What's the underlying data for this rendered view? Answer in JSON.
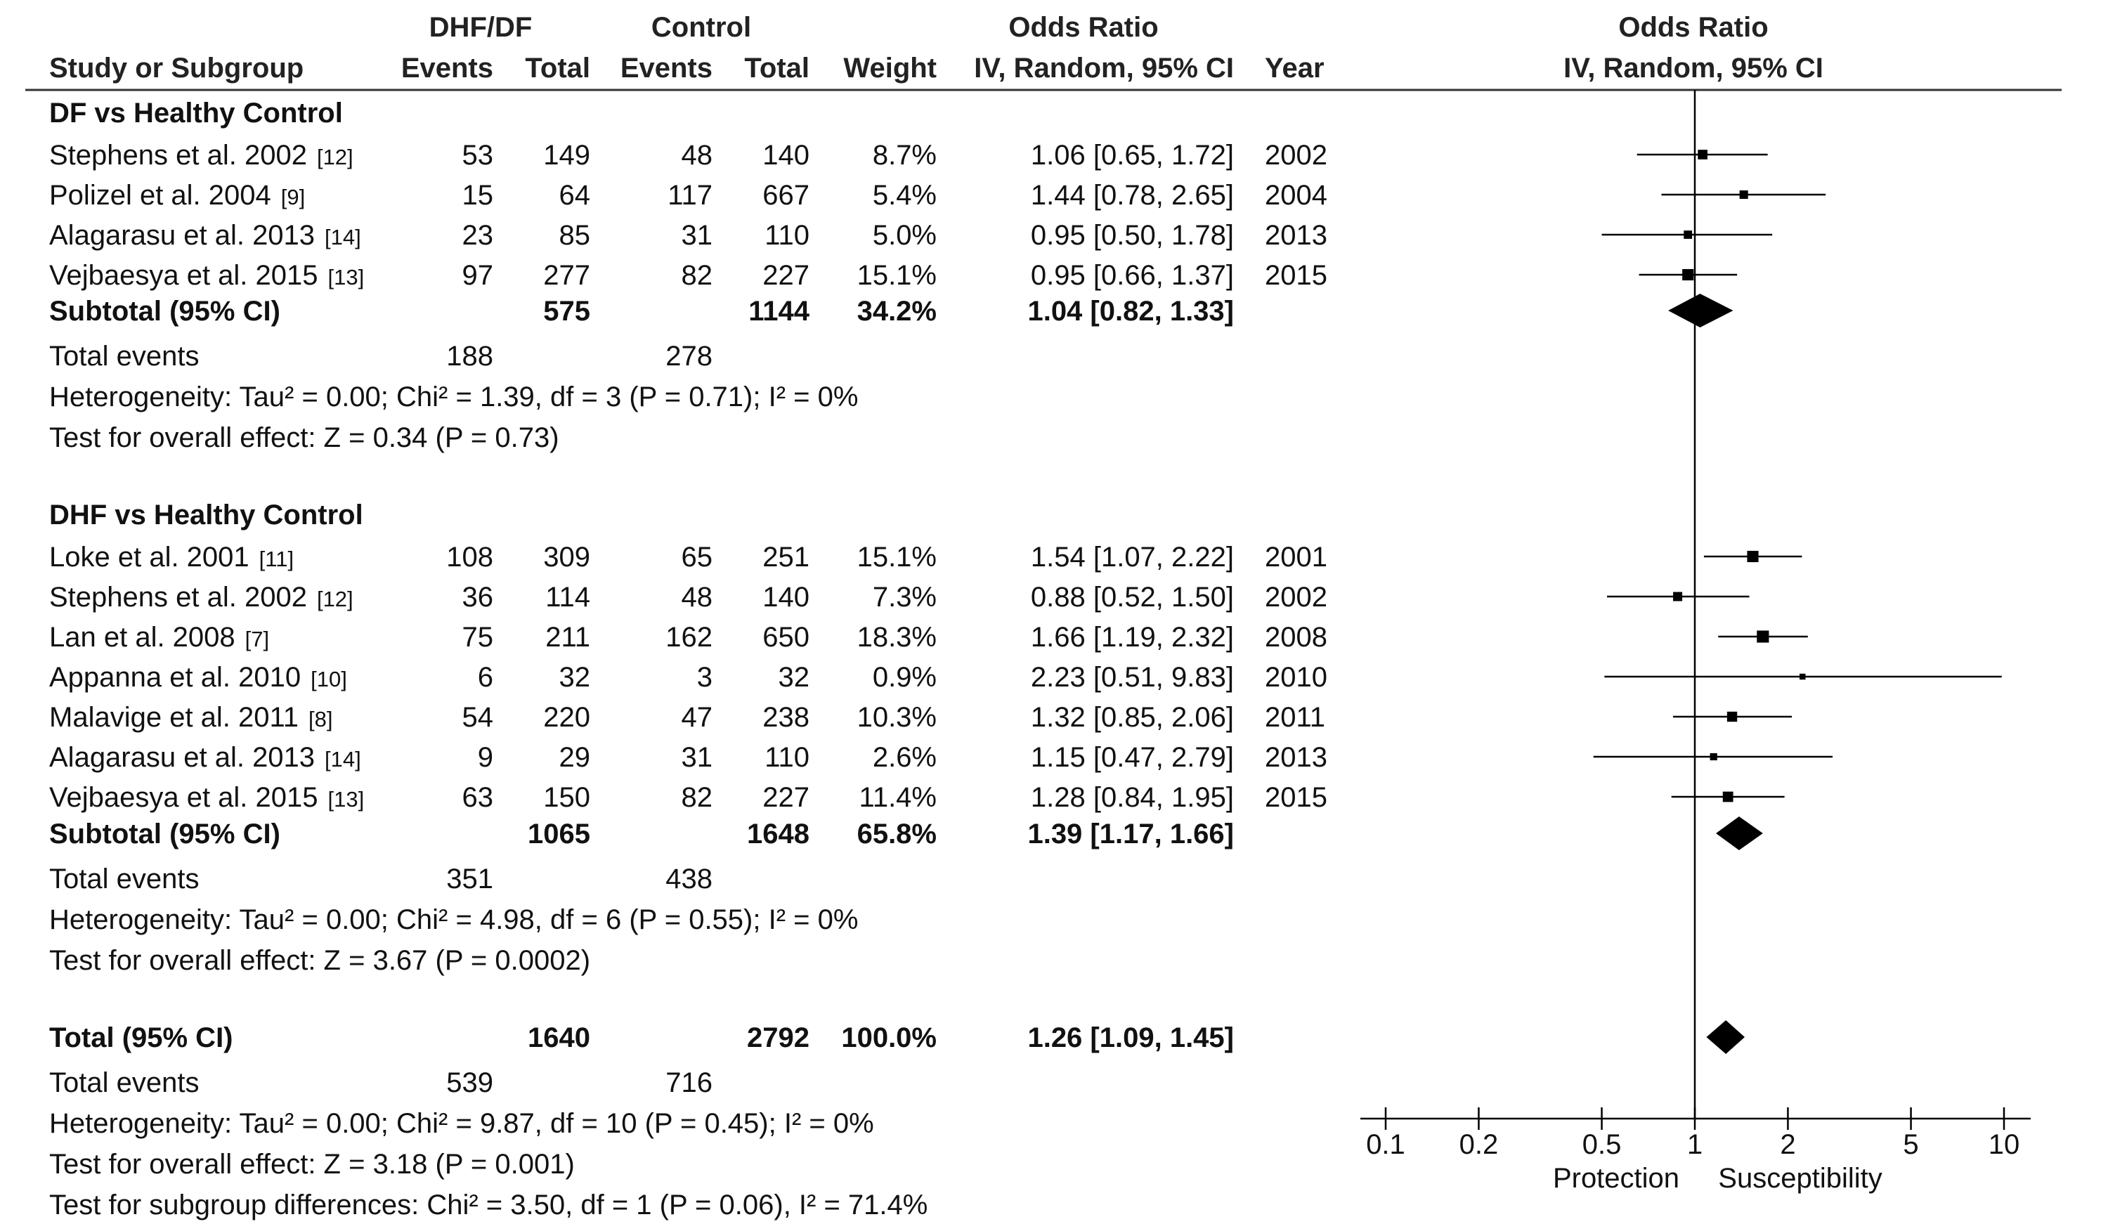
{
  "header": {
    "group1": "DHF/DF",
    "group2": "Control",
    "or_col": "Odds Ratio",
    "study_col": "Study or Subgroup",
    "events": "Events",
    "total": "Total",
    "weight": "Weight",
    "method": "IV, Random, 95% CI",
    "year": "Year",
    "plot_title": "Odds Ratio",
    "plot_method": "IV, Random, 95% CI"
  },
  "chart_data": {
    "type": "forest",
    "scale": "log",
    "xlim": [
      0.1,
      10
    ],
    "null_line": 1,
    "ticks": [
      {
        "value": 0.1,
        "label": "0.1"
      },
      {
        "value": 0.2,
        "label": "0.2"
      },
      {
        "value": 0.5,
        "label": "0.5"
      },
      {
        "value": 1,
        "label": "1"
      },
      {
        "value": 2,
        "label": "2"
      },
      {
        "value": 5,
        "label": "5"
      },
      {
        "value": 10,
        "label": "10"
      }
    ],
    "left_label": "Protection",
    "right_label": "Susceptibility",
    "subgroups": [
      {
        "title": "DF vs Healthy Control",
        "studies": [
          {
            "name": "Stephens et al. 2002",
            "ref": "[12]",
            "e1": "53",
            "t1": "149",
            "e2": "48",
            "t2": "140",
            "weight": "8.7%",
            "ci_text": "1.06 [0.65, 1.72]",
            "year": "2002",
            "or": 1.06,
            "lo": 0.65,
            "hi": 1.72,
            "w": 8.7
          },
          {
            "name": "Polizel et al. 2004",
            "ref": "[9]",
            "e1": "15",
            "t1": "64",
            "e2": "117",
            "t2": "667",
            "weight": "5.4%",
            "ci_text": "1.44 [0.78, 2.65]",
            "year": "2004",
            "or": 1.44,
            "lo": 0.78,
            "hi": 2.65,
            "w": 5.4
          },
          {
            "name": "Alagarasu et al. 2013",
            "ref": "[14]",
            "e1": "23",
            "t1": "85",
            "e2": "31",
            "t2": "110",
            "weight": "5.0%",
            "ci_text": "0.95 [0.50, 1.78]",
            "year": "2013",
            "or": 0.95,
            "lo": 0.5,
            "hi": 1.78,
            "w": 5.0
          },
          {
            "name": "Vejbaesya et al. 2015",
            "ref": "[13]",
            "e1": "97",
            "t1": "277",
            "e2": "82",
            "t2": "227",
            "weight": "15.1%",
            "ci_text": "0.95 [0.66, 1.37]",
            "year": "2015",
            "or": 0.95,
            "lo": 0.66,
            "hi": 1.37,
            "w": 15.1
          }
        ],
        "subtotal": {
          "label": "Subtotal (95% CI)",
          "t1": "575",
          "t2": "1144",
          "weight": "34.2%",
          "ci_text": "1.04 [0.82, 1.33]",
          "or": 1.04,
          "lo": 0.82,
          "hi": 1.33
        },
        "total_events": {
          "label": "Total events",
          "e1": "188",
          "e2": "278"
        },
        "heterogeneity": "Heterogeneity: Tau² = 0.00; Chi² = 1.39, df = 3 (P = 0.71); I² = 0%",
        "overall": "Test for overall effect: Z = 0.34 (P = 0.73)"
      },
      {
        "title": "DHF vs Healthy Control",
        "studies": [
          {
            "name": "Loke et al. 2001",
            "ref": "[11]",
            "e1": "108",
            "t1": "309",
            "e2": "65",
            "t2": "251",
            "weight": "15.1%",
            "ci_text": "1.54 [1.07, 2.22]",
            "year": "2001",
            "or": 1.54,
            "lo": 1.07,
            "hi": 2.22,
            "w": 15.1
          },
          {
            "name": "Stephens et al. 2002",
            "ref": "[12]",
            "e1": "36",
            "t1": "114",
            "e2": "48",
            "t2": "140",
            "weight": "7.3%",
            "ci_text": "0.88 [0.52, 1.50]",
            "year": "2002",
            "or": 0.88,
            "lo": 0.52,
            "hi": 1.5,
            "w": 7.3
          },
          {
            "name": "Lan et al. 2008",
            "ref": "[7]",
            "e1": "75",
            "t1": "211",
            "e2": "162",
            "t2": "650",
            "weight": "18.3%",
            "ci_text": "1.66 [1.19, 2.32]",
            "year": "2008",
            "or": 1.66,
            "lo": 1.19,
            "hi": 2.32,
            "w": 18.3
          },
          {
            "name": "Appanna et al. 2010",
            "ref": "[10]",
            "e1": "6",
            "t1": "32",
            "e2": "3",
            "t2": "32",
            "weight": "0.9%",
            "ci_text": "2.23 [0.51, 9.83]",
            "year": "2010",
            "or": 2.23,
            "lo": 0.51,
            "hi": 9.83,
            "w": 0.9
          },
          {
            "name": "Malavige et al. 2011",
            "ref": "[8]",
            "e1": "54",
            "t1": "220",
            "e2": "47",
            "t2": "238",
            "weight": "10.3%",
            "ci_text": "1.32 [0.85, 2.06]",
            "year": "2011",
            "or": 1.32,
            "lo": 0.85,
            "hi": 2.06,
            "w": 10.3
          },
          {
            "name": "Alagarasu et al. 2013",
            "ref": "[14]",
            "e1": "9",
            "t1": "29",
            "e2": "31",
            "t2": "110",
            "weight": "2.6%",
            "ci_text": "1.15 [0.47, 2.79]",
            "year": "2013",
            "or": 1.15,
            "lo": 0.47,
            "hi": 2.79,
            "w": 2.6
          },
          {
            "name": "Vejbaesya et al. 2015",
            "ref": "[13]",
            "e1": "63",
            "t1": "150",
            "e2": "82",
            "t2": "227",
            "weight": "11.4%",
            "ci_text": "1.28 [0.84, 1.95]",
            "year": "2015",
            "or": 1.28,
            "lo": 0.84,
            "hi": 1.95,
            "w": 11.4
          }
        ],
        "subtotal": {
          "label": "Subtotal (95% CI)",
          "t1": "1065",
          "t2": "1648",
          "weight": "65.8%",
          "ci_text": "1.39 [1.17, 1.66]",
          "or": 1.39,
          "lo": 1.17,
          "hi": 1.66
        },
        "total_events": {
          "label": "Total events",
          "e1": "351",
          "e2": "438"
        },
        "heterogeneity": "Heterogeneity: Tau² = 0.00; Chi² = 4.98, df = 6 (P = 0.55); I² = 0%",
        "overall": "Test for overall effect: Z = 3.67 (P = 0.0002)"
      }
    ],
    "total": {
      "label": "Total (95% CI)",
      "t1": "1640",
      "t2": "2792",
      "weight": "100.0%",
      "ci_text": "1.26 [1.09, 1.45]",
      "or": 1.26,
      "lo": 1.09,
      "hi": 1.45,
      "events_label": "Total events",
      "e1": "539",
      "e2": "716",
      "heterogeneity": "Heterogeneity: Tau² = 0.00; Chi² = 9.87, df = 10 (P = 0.45); I² = 0%",
      "overall": "Test for overall effect: Z = 3.18 (P = 0.001)",
      "subgroup_diff": "Test for subgroup differences: Chi² = 3.50, df = 1 (P = 0.06), I² = 71.4%"
    }
  }
}
